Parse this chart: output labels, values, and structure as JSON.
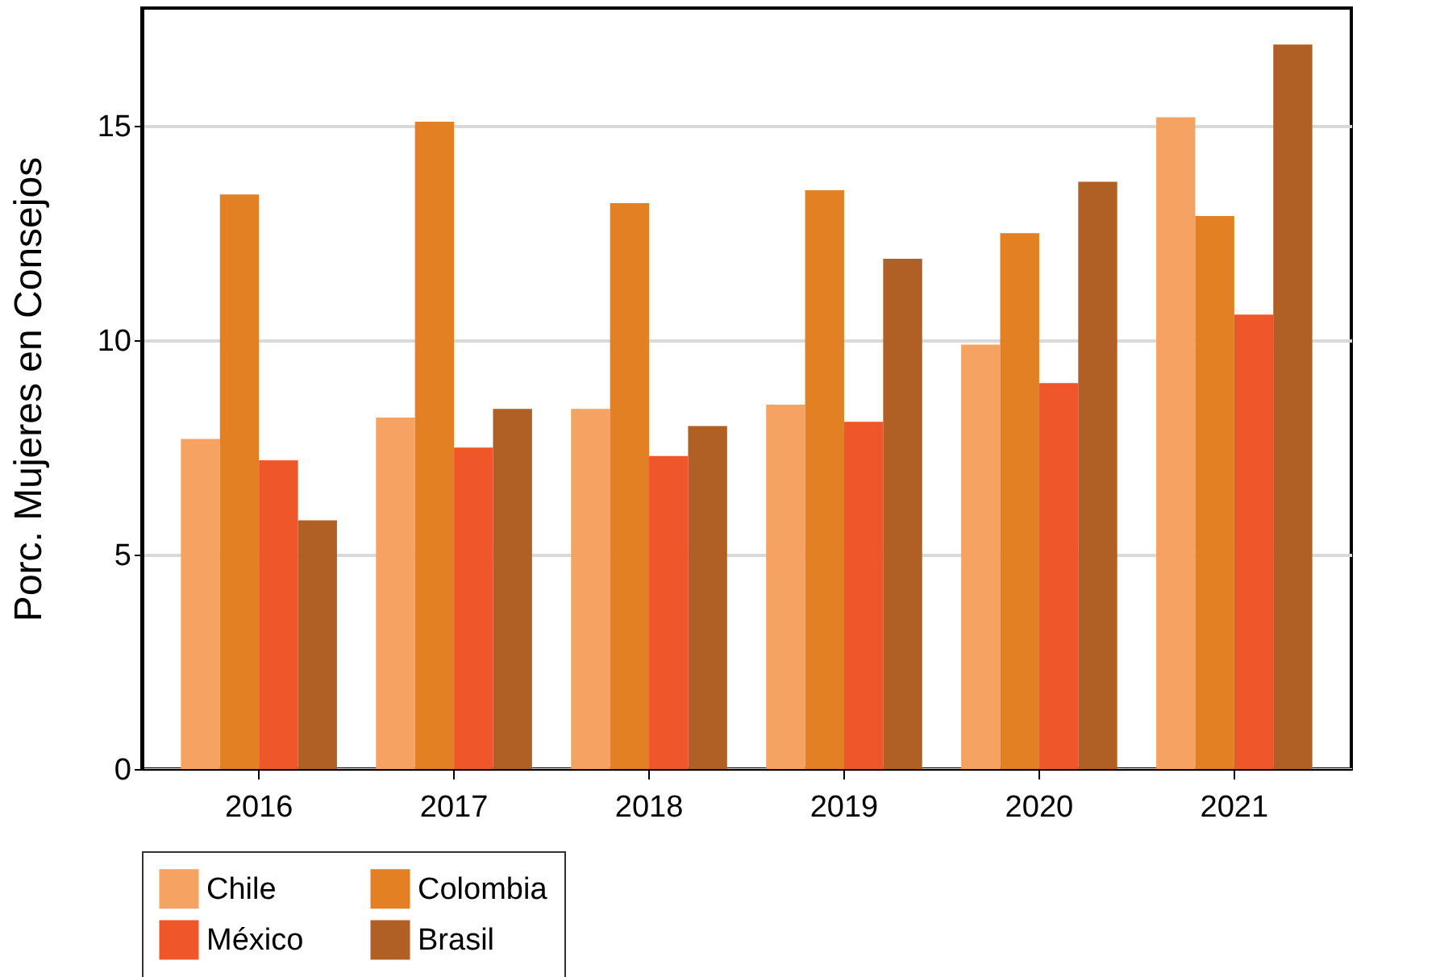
{
  "chart_data": {
    "type": "bar",
    "ylabel": "Porc. Mujeres en Consejos",
    "categories": [
      "2016",
      "2017",
      "2018",
      "2019",
      "2020",
      "2021"
    ],
    "series": [
      {
        "name": "Chile",
        "color": "#f6a263",
        "values": [
          7.7,
          8.2,
          8.4,
          8.5,
          9.9,
          15.2
        ]
      },
      {
        "name": "Colombia",
        "color": "#e38024",
        "values": [
          13.4,
          15.1,
          13.2,
          13.5,
          12.5,
          12.9
        ]
      },
      {
        "name": "México",
        "color": "#ef572b",
        "values": [
          7.2,
          7.5,
          7.3,
          8.1,
          9.0,
          10.6
        ]
      },
      {
        "name": "Brasil",
        "color": "#b05f25",
        "values": [
          5.8,
          8.4,
          8.0,
          11.9,
          13.7,
          16.9
        ]
      }
    ],
    "ylim": [
      0,
      17.75
    ],
    "yticks": [
      0,
      5,
      10,
      15
    ],
    "grid": "y",
    "legend": "bottom"
  }
}
